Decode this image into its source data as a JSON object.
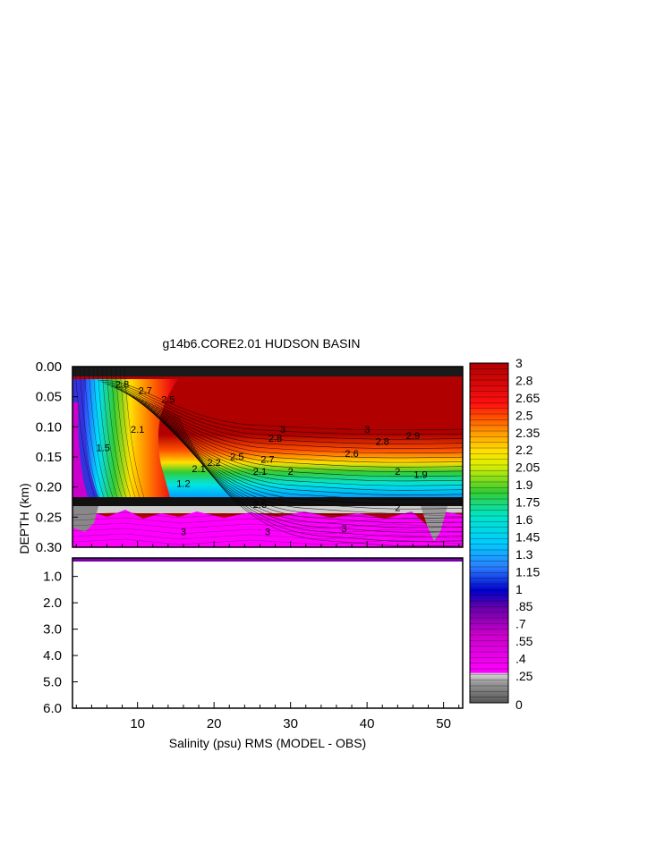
{
  "chart_data": {
    "type": "heatmap",
    "title": "g14b6.CORE2.01 HUDSON BASIN",
    "xlabel": "Salinity (psu) RMS (MODEL - OBS)",
    "ylabel": "DEPTH (km)",
    "xlim": [
      1.5,
      52.5
    ],
    "x_ticks": [
      10,
      20,
      30,
      40,
      50
    ],
    "x_tick_labels": [
      "10",
      "20",
      "30",
      "40",
      "50"
    ],
    "upper_panel": {
      "ylim": [
        0.0,
        0.3
      ],
      "y_ticks": [
        0.0,
        0.05,
        0.1,
        0.15,
        0.2,
        0.25,
        0.3
      ],
      "y_tick_labels": [
        "0.00",
        "0.05",
        "0.10",
        "0.15",
        "0.20",
        "0.25",
        "0.30"
      ]
    },
    "lower_panel": {
      "ylim": [
        0.3,
        6.0
      ],
      "y_ticks": [
        1.0,
        2.0,
        3.0,
        4.0,
        5.0,
        6.0
      ],
      "y_tick_labels": [
        "1.0",
        "2.0",
        "3.0",
        "4.0",
        "5.0",
        "6.0"
      ]
    },
    "colorbar": {
      "range": [
        0,
        3
      ],
      "tick_labels": [
        "3",
        "2.8",
        "2.65",
        "2.5",
        "2.35",
        "2.2",
        "2.05",
        "1.9",
        "1.75",
        "1.6",
        "1.45",
        "1.3",
        "1.15",
        "1",
        ".85",
        ".7",
        ".55",
        ".4",
        ".25",
        "0"
      ]
    },
    "contour_labels": [
      {
        "text": "3",
        "x": 40,
        "y": 0.11
      },
      {
        "text": "3",
        "x": 29,
        "y": 0.11
      },
      {
        "text": "2.9",
        "x": 46,
        "y": 0.12
      },
      {
        "text": "2.8",
        "x": 28,
        "y": 0.125
      },
      {
        "text": "2.8",
        "x": 42,
        "y": 0.13
      },
      {
        "text": "2.7",
        "x": 27,
        "y": 0.16
      },
      {
        "text": "2.6",
        "x": 38,
        "y": 0.15
      },
      {
        "text": "2.5",
        "x": 23,
        "y": 0.155
      },
      {
        "text": "2.2",
        "x": 20,
        "y": 0.165
      },
      {
        "text": "2.1",
        "x": 18,
        "y": 0.175
      },
      {
        "text": "2.1",
        "x": 26,
        "y": 0.18
      },
      {
        "text": "2",
        "x": 30,
        "y": 0.18
      },
      {
        "text": "2",
        "x": 44,
        "y": 0.18
      },
      {
        "text": "1.9",
        "x": 47,
        "y": 0.185
      },
      {
        "text": "1.2",
        "x": 16,
        "y": 0.2
      },
      {
        "text": "2.5",
        "x": 26,
        "y": 0.235
      },
      {
        "text": "2",
        "x": 44,
        "y": 0.24
      },
      {
        "text": "3",
        "x": 16,
        "y": 0.28
      },
      {
        "text": "3",
        "x": 27,
        "y": 0.28
      },
      {
        "text": "3",
        "x": 37,
        "y": 0.275
      },
      {
        "text": "2.8",
        "x": 8,
        "y": 0.035
      },
      {
        "text": "2.7",
        "x": 11,
        "y": 0.045
      },
      {
        "text": "2.5",
        "x": 14,
        "y": 0.06
      },
      {
        "text": "2.1",
        "x": 10,
        "y": 0.11
      },
      {
        "text": "1.5",
        "x": 5.5,
        "y": 0.14
      }
    ]
  }
}
